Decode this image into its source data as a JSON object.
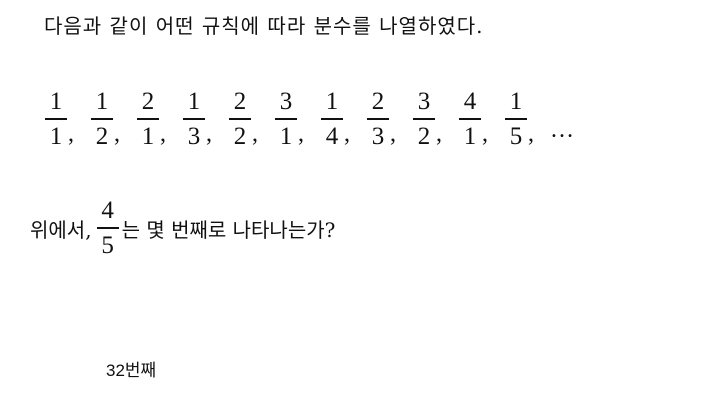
{
  "problem": {
    "intro": "다음과 같이 어떤 규칙에 따라 분수를 나열하였다.",
    "sequence": [
      {
        "numerator": "1",
        "denominator": "1"
      },
      {
        "numerator": "1",
        "denominator": "2"
      },
      {
        "numerator": "2",
        "denominator": "1"
      },
      {
        "numerator": "1",
        "denominator": "3"
      },
      {
        "numerator": "2",
        "denominator": "2"
      },
      {
        "numerator": "3",
        "denominator": "1"
      },
      {
        "numerator": "1",
        "denominator": "4"
      },
      {
        "numerator": "2",
        "denominator": "3"
      },
      {
        "numerator": "3",
        "denominator": "2"
      },
      {
        "numerator": "4",
        "denominator": "1"
      },
      {
        "numerator": "1",
        "denominator": "5"
      }
    ],
    "separator": ",",
    "ellipsis": "…",
    "question": {
      "prefix": "위에서,",
      "fraction": {
        "numerator": "4",
        "denominator": "5"
      },
      "suffix": "는 몇 번째로 나타나는가?"
    }
  },
  "answer": {
    "text": "32번째"
  }
}
